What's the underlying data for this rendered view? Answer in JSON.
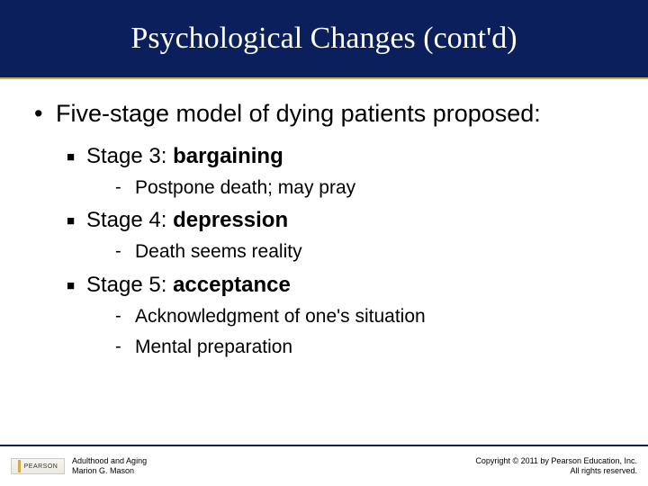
{
  "title": "Psychological Changes (cont'd)",
  "main_bullet": "Five-stage model of dying patients proposed:",
  "stages": [
    {
      "label": "Stage 3: ",
      "name": "bargaining",
      "subs": [
        "Postpone death; may pray"
      ]
    },
    {
      "label": "Stage 4: ",
      "name": "depression",
      "subs": [
        "Death seems reality"
      ]
    },
    {
      "label": "Stage 5: ",
      "name": "acceptance",
      "subs": [
        "Acknowledgment of one's situation",
        "Mental preparation"
      ]
    }
  ],
  "footer": {
    "publisher": "PEARSON",
    "book": "Adulthood and Aging",
    "author": "Marion G. Mason",
    "copyright": "Copyright © 2011 by Pearson Education, Inc.",
    "rights": "All rights reserved."
  },
  "colors": {
    "title_band": "#0a1f5c",
    "accent": "#d4a84b",
    "text": "#000000",
    "background": "#ffffff"
  },
  "typography": {
    "title_font": "Georgia serif",
    "title_size_pt": 26,
    "body_font": "Arial",
    "l1_size_pt": 20,
    "l2_size_pt": 18,
    "l3_size_pt": 16,
    "footer_size_pt": 7
  }
}
